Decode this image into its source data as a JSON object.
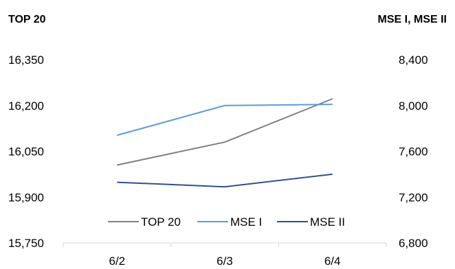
{
  "chart_data": {
    "type": "line",
    "categories": [
      "6/2",
      "6/3",
      "6/4"
    ],
    "left_axis": {
      "title": "TOP 20",
      "ylim": [
        15750,
        16350
      ],
      "ticks": [
        "16,350",
        "16,200",
        "16,050",
        "15,900",
        "15,750"
      ],
      "tick_values": [
        16350,
        16200,
        16050,
        15900,
        15750
      ]
    },
    "right_axis": {
      "title": "MSE I, MSE II",
      "ylim": [
        6800,
        8400
      ],
      "ticks": [
        "8,400",
        "8,000",
        "7,600",
        "7,200",
        "6,800"
      ],
      "tick_values": [
        8400,
        8000,
        7600,
        7200,
        6800
      ]
    },
    "series": [
      {
        "name": "TOP 20",
        "axis": "left",
        "color": "#7f7f7f",
        "values": [
          16005,
          16080,
          16222
        ]
      },
      {
        "name": "MSE I",
        "axis": "right",
        "color": "#5b9bd5",
        "values": [
          7740,
          8000,
          8010
        ]
      },
      {
        "name": "MSE II",
        "axis": "right",
        "color": "#2e4e8c",
        "values": [
          7330,
          7290,
          7400
        ]
      }
    ],
    "legend": {
      "placement": "bottom-center"
    },
    "grid": false
  }
}
